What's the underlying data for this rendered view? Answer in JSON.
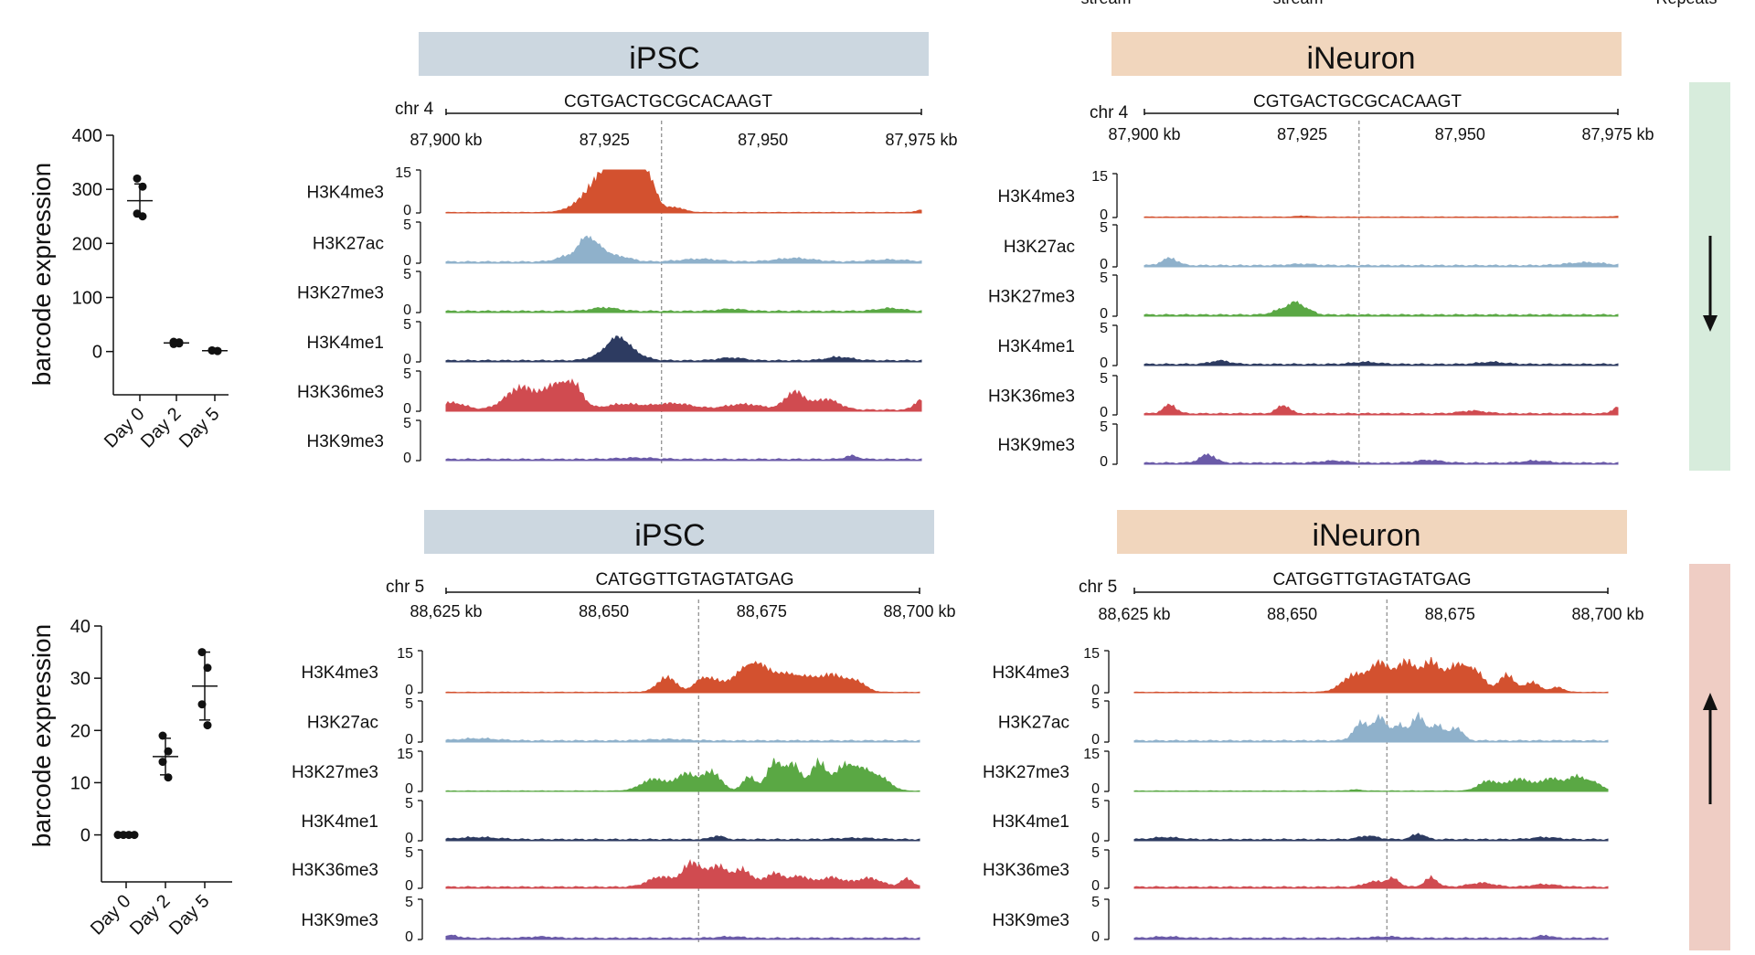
{
  "colors": {
    "ipsc_header": "#ccd7e0",
    "ineuron_header": "#f1d6bd",
    "down_bar": "#d7ecdc",
    "up_bar": "#efcdc4",
    "H3K4me3": "#d3512f",
    "H3K27ac": "#8fb1cb",
    "H3K27me3": "#5aa844",
    "H3K4me1": "#2d3b61",
    "H3K36me3": "#d04b50",
    "H3K9me3": "#6a5aa8"
  },
  "top_cut": {
    "labels": [
      "stream",
      "stream",
      "Repeats"
    ]
  },
  "chart_data": [
    {
      "type": "scatter",
      "title": "",
      "ylabel": "barcode expression",
      "categories": [
        "Day 0",
        "Day 2",
        "Day 5"
      ],
      "ylim": [
        -80,
        400
      ],
      "yticks": [
        "400",
        "300",
        "200",
        "100",
        "0"
      ],
      "ytick_values": [
        400,
        300,
        200,
        100,
        0
      ],
      "points": [
        [
          320,
          305,
          255,
          250
        ],
        [
          18,
          15,
          14,
          17
        ],
        [
          2,
          1,
          2,
          1
        ]
      ],
      "means": [
        279,
        16,
        1.5
      ],
      "sd": [
        [
          250,
          310
        ],
        [
          14,
          18
        ],
        [
          0,
          3
        ]
      ]
    },
    {
      "type": "scatter",
      "title": "",
      "ylabel": "barcode expression",
      "categories": [
        "Day 0",
        "Day 2",
        "Day 5"
      ],
      "ylim": [
        -9,
        40
      ],
      "yticks": [
        "40",
        "30",
        "20",
        "10",
        "0"
      ],
      "ytick_values": [
        40,
        30,
        20,
        10,
        0
      ],
      "points": [
        [
          0,
          0,
          0,
          0
        ],
        [
          19,
          16,
          14,
          11
        ],
        [
          35,
          32,
          25,
          21
        ]
      ],
      "means": [
        0,
        15,
        28.5
      ],
      "sd": [
        [
          0,
          0
        ],
        [
          11.5,
          18.5
        ],
        [
          22,
          35
        ]
      ]
    },
    {
      "type": "area",
      "panel": "iPSC top",
      "title": "iPSC",
      "chrom": "chr 4",
      "sequence": "CGTGACTGCGCACAAGT",
      "xticks": [
        "87,900 kb",
        "87,925",
        "87,950",
        "87,975 kb"
      ],
      "xlim": [
        87900,
        87975
      ],
      "cut_site": 87934,
      "tracks": [
        {
          "name": "H3K4me3",
          "ymax": "15",
          "ymin": "0",
          "max_value": 15,
          "peaks": [
            [
              87925,
              3,
              13
            ],
            [
              87927,
              2,
              9
            ],
            [
              87929,
              1.5,
              14
            ],
            [
              87931,
              1.5,
              10
            ],
            [
              87932.5,
              1,
              5
            ],
            [
              87936,
              1.5,
              2
            ],
            [
              87975,
              0.8,
              1
            ]
          ]
        },
        {
          "name": "H3K27ac",
          "ymax": "5",
          "ymin": "0",
          "max_value": 5,
          "peaks": [
            [
              87920,
              2,
              1
            ],
            [
              87922,
              1,
              2.5
            ],
            [
              87924,
              1.2,
              1.8
            ],
            [
              87927,
              2,
              0.8
            ],
            [
              87940,
              3,
              0.4
            ],
            [
              87955,
              3,
              0.5
            ],
            [
              87970,
              3,
              0.3
            ]
          ]
        },
        {
          "name": "H3K27me3",
          "ymax": "5",
          "ymin": "0",
          "max_value": 5,
          "peaks": [
            [
              87925,
              2,
              0.5
            ],
            [
              87945,
              2,
              0.3
            ],
            [
              87970,
              2,
              0.4
            ]
          ]
        },
        {
          "name": "H3K4me1",
          "ymax": "5",
          "ymin": "0",
          "max_value": 5,
          "peaks": [
            [
              87925,
              2,
              0.8
            ],
            [
              87927,
              1.5,
              2.2
            ],
            [
              87929,
              2,
              1.2
            ],
            [
              87945,
              2,
              0.4
            ],
            [
              87962,
              2,
              0.5
            ]
          ]
        },
        {
          "name": "H3K36me3",
          "ymax": "5",
          "ymin": "0",
          "max_value": 5,
          "peaks": [
            [
              87901,
              2,
              1
            ],
            [
              87912,
              2.5,
              3.2
            ],
            [
              87917,
              1.5,
              2.8
            ],
            [
              87920,
              1.5,
              3.6
            ],
            [
              87928,
              3,
              0.8
            ],
            [
              87936,
              3,
              0.9
            ],
            [
              87947,
              3,
              0.8
            ],
            [
              87955,
              1.5,
              2.5
            ],
            [
              87960,
              2,
              1.5
            ],
            [
              87975,
              1,
              1.5
            ]
          ]
        },
        {
          "name": "H3K9me3",
          "ymax": "5",
          "ymin": "0",
          "max_value": 5,
          "peaks": [
            [
              87930,
              3,
              0.2
            ],
            [
              87964,
              1,
              0.5
            ]
          ]
        }
      ]
    },
    {
      "type": "area",
      "panel": "iNeuron top",
      "title": "iNeuron",
      "chrom": "chr 4",
      "sequence": "CGTGACTGCGCACAAGT",
      "xticks": [
        "87,900 kb",
        "87,925",
        "87,950",
        "87,975 kb"
      ],
      "xlim": [
        87900,
        87975
      ],
      "cut_site": 87934,
      "tracks": [
        {
          "name": "H3K4me3",
          "ymax": "15",
          "ymin": "0",
          "max_value": 15,
          "peaks": [
            [
              87925,
              1,
              0.4
            ],
            [
              87975,
              1,
              0.3
            ]
          ]
        },
        {
          "name": "H3K27ac",
          "ymax": "5",
          "ymin": "0",
          "max_value": 5,
          "peaks": [
            [
              87904,
              1.2,
              1
            ],
            [
              87925,
              2,
              0.2
            ],
            [
              87970,
              3,
              0.4
            ]
          ]
        },
        {
          "name": "H3K27me3",
          "ymax": "5",
          "ymin": "0",
          "max_value": 5,
          "peaks": [
            [
              87922,
              1.5,
              0.8
            ],
            [
              87924,
              1,
              1.4
            ],
            [
              87926,
              1,
              0.6
            ]
          ]
        },
        {
          "name": "H3K4me1",
          "ymax": "5",
          "ymin": "0",
          "max_value": 5,
          "peaks": [
            [
              87912,
              1.5,
              0.5
            ],
            [
              87935,
              2,
              0.3
            ],
            [
              87955,
              2,
              0.3
            ]
          ]
        },
        {
          "name": "H3K36me3",
          "ymax": "5",
          "ymin": "0",
          "max_value": 5,
          "peaks": [
            [
              87904,
              1,
              1.3
            ],
            [
              87922,
              1,
              1.2
            ],
            [
              87952,
              2,
              0.4
            ],
            [
              87975,
              0.8,
              1
            ]
          ]
        },
        {
          "name": "H3K9me3",
          "ymax": "5",
          "ymin": "0",
          "max_value": 5,
          "peaks": [
            [
              87910,
              1.2,
              1.2
            ],
            [
              87930,
              2,
              0.3
            ],
            [
              87945,
              2,
              0.4
            ],
            [
              87962,
              2,
              0.3
            ]
          ]
        }
      ]
    },
    {
      "type": "area",
      "panel": "iPSC bottom",
      "title": "iPSC",
      "chrom": "chr 5",
      "sequence": "CATGGTTGTAGTATGAG",
      "xticks": [
        "88,625 kb",
        "88,650",
        "88,675",
        "88,700 kb"
      ],
      "xlim": [
        88625,
        88700
      ],
      "cut_site": 88665,
      "tracks": [
        {
          "name": "H3K4me3",
          "ymax": "15",
          "ymin": "0",
          "max_value": 15,
          "peaks": [
            [
              88660,
              1.5,
              6
            ],
            [
              88665,
              1,
              3
            ],
            [
              88667,
              1.5,
              5
            ],
            [
              88672,
              2,
              7
            ],
            [
              88675,
              2,
              9
            ],
            [
              88679,
              1.5,
              6
            ],
            [
              88682,
              1.5,
              5
            ],
            [
              88686,
              2,
              7
            ],
            [
              88690,
              1.5,
              4
            ]
          ]
        },
        {
          "name": "H3K27ac",
          "ymax": "5",
          "ymin": "0",
          "max_value": 5,
          "peaks": [
            [
              88630,
              3,
              0.3
            ],
            [
              88660,
              3,
              0.2
            ]
          ]
        },
        {
          "name": "H3K27me3",
          "ymax": "15",
          "ymin": "0",
          "max_value": 15,
          "peaks": [
            [
              88658,
              2,
              5
            ],
            [
              88663,
              1.5,
              7
            ],
            [
              88667,
              1.5,
              8
            ],
            [
              88673,
              1,
              6
            ],
            [
              88677,
              1.2,
              12
            ],
            [
              88680,
              1.2,
              11
            ],
            [
              88684,
              1.2,
              12
            ],
            [
              88688,
              1.5,
              10
            ],
            [
              88691,
              1.5,
              8
            ],
            [
              88694,
              1.5,
              5
            ]
          ]
        },
        {
          "name": "H3K4me1",
          "ymax": "5",
          "ymin": "0",
          "max_value": 5,
          "peaks": [
            [
              88630,
              3,
              0.3
            ],
            [
              88668,
              1,
              0.5
            ],
            [
              88690,
              3,
              0.2
            ]
          ]
        },
        {
          "name": "H3K36me3",
          "ymax": "5",
          "ymin": "0",
          "max_value": 5,
          "peaks": [
            [
              88659,
              2,
              1.5
            ],
            [
              88664,
              1.5,
              3.5
            ],
            [
              88668,
              1.5,
              3
            ],
            [
              88672,
              1.5,
              2.5
            ],
            [
              88677,
              1.5,
              2
            ],
            [
              88681,
              1.5,
              1.5
            ],
            [
              88686,
              2,
              1.4
            ],
            [
              88692,
              2,
              1.3
            ],
            [
              88698,
              1,
              1.2
            ]
          ]
        },
        {
          "name": "H3K9me3",
          "ymax": "5",
          "ymin": "0",
          "max_value": 5,
          "peaks": [
            [
              88626,
              1,
              0.4
            ],
            [
              88640,
              2,
              0.2
            ],
            [
              88670,
              2,
              0.2
            ]
          ]
        }
      ]
    },
    {
      "type": "area",
      "panel": "iNeuron bottom",
      "title": "iNeuron",
      "chrom": "chr 5",
      "sequence": "CATGGTTGTAGTATGAG",
      "xticks": [
        "88,625 kb",
        "88,650",
        "88,675",
        "88,700 kb"
      ],
      "xlim": [
        88625,
        88700
      ],
      "cut_site": 88665,
      "tracks": [
        {
          "name": "H3K4me3",
          "ymax": "15",
          "ymin": "0",
          "max_value": 15,
          "peaks": [
            [
              88660,
              2,
              7
            ],
            [
              88664,
              1.5,
              11
            ],
            [
              88668,
              1.5,
              12
            ],
            [
              88672,
              1.5,
              12
            ],
            [
              88676,
              1.5,
              10
            ],
            [
              88679,
              1.5,
              8
            ],
            [
              88684,
              1.2,
              7
            ],
            [
              88688,
              1.2,
              4
            ],
            [
              88692,
              1,
              2
            ]
          ]
        },
        {
          "name": "H3K27ac",
          "ymax": "5",
          "ymin": "0",
          "max_value": 5,
          "peaks": [
            [
              88661,
              1.2,
              2.5
            ],
            [
              88664,
              1,
              3.2
            ],
            [
              88667,
              1,
              2.2
            ],
            [
              88670,
              1,
              3.5
            ],
            [
              88673,
              1,
              2.2
            ],
            [
              88676,
              1,
              1.8
            ]
          ]
        },
        {
          "name": "H3K27me3",
          "ymax": "15",
          "ymin": "0",
          "max_value": 15,
          "peaks": [
            [
              88660,
              1,
              0.5
            ],
            [
              88681,
              1.5,
              4
            ],
            [
              88686,
              2,
              5
            ],
            [
              88691,
              1.5,
              5
            ],
            [
              88695,
              1.5,
              6
            ],
            [
              88698,
              1.2,
              3
            ]
          ]
        },
        {
          "name": "H3K4me1",
          "ymax": "5",
          "ymin": "0",
          "max_value": 5,
          "peaks": [
            [
              88630,
              2,
              0.3
            ],
            [
              88662,
              1.5,
              0.5
            ],
            [
              88670,
              1,
              0.8
            ],
            [
              88690,
              2,
              0.3
            ]
          ]
        },
        {
          "name": "H3K36me3",
          "ymax": "5",
          "ymin": "0",
          "max_value": 5,
          "peaks": [
            [
              88663,
              1.5,
              0.8
            ],
            [
              88666,
              1,
              1.2
            ],
            [
              88672,
              1,
              1.4
            ],
            [
              88680,
              2,
              0.6
            ],
            [
              88690,
              2,
              0.4
            ]
          ]
        },
        {
          "name": "H3K9me3",
          "ymax": "5",
          "ymin": "0",
          "max_value": 5,
          "peaks": [
            [
              88630,
              2,
              0.2
            ],
            [
              88665,
              2,
              0.2
            ],
            [
              88690,
              1,
              0.4
            ]
          ]
        }
      ]
    }
  ]
}
